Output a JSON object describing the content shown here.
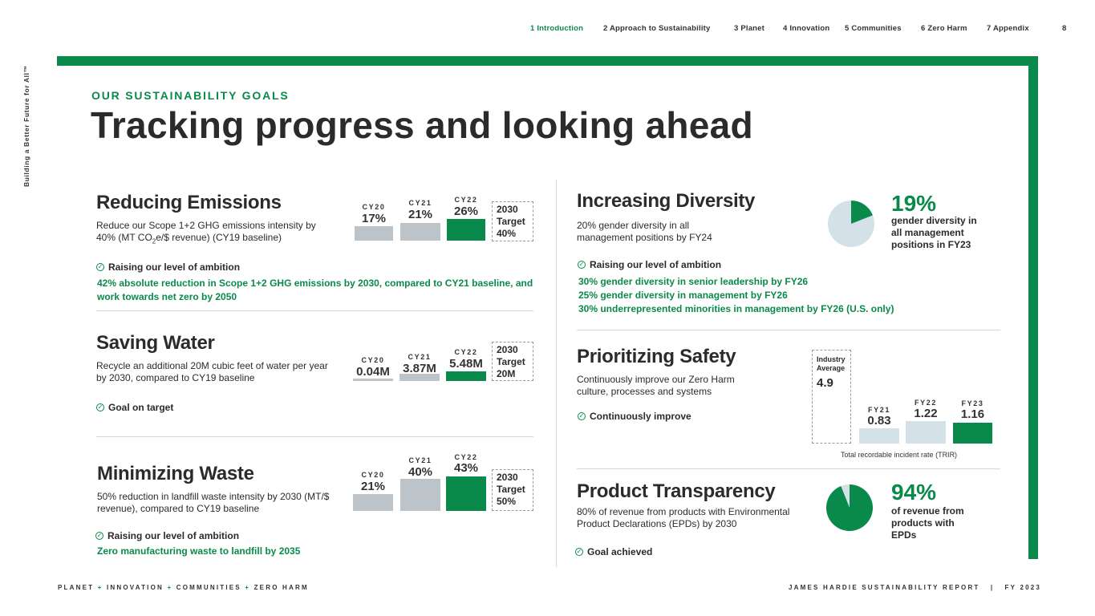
{
  "nav": {
    "items": [
      "1 Introduction",
      "2 Approach to Sustainability",
      "3 Planet",
      "4 Innovation",
      "5 Communities",
      "6 Zero Harm",
      "7 Appendix"
    ],
    "page_number": "8"
  },
  "side_text": "Building a Better Future for All™",
  "kicker": "OUR SUSTAINABILITY GOALS",
  "title": "Tracking progress and looking ahead",
  "emissions": {
    "title": "Reducing Emissions",
    "desc_before": "Reduce our Scope 1+2 GHG emissions intensity by 40% (MT CO",
    "desc_sub": "2",
    "desc_after": "e/$ revenue) (CY19 baseline)",
    "status": "Raising our level of ambition",
    "green_text": "42% absolute reduction in Scope 1+2 GHG emissions by 2030, compared to CY21 baseline, and work towards net zero by 2050",
    "chart": {
      "years": [
        "CY20",
        "CY21",
        "CY22"
      ],
      "labels": [
        "17%",
        "21%",
        "26%"
      ],
      "values": [
        17,
        21,
        26
      ]
    },
    "target": {
      "line1": "2030",
      "line2": "Target",
      "line3": "40%"
    }
  },
  "water": {
    "title": "Saving Water",
    "desc": "Recycle an additional 20M cubic feet of water per year by 2030, compared to CY19 baseline",
    "status": "Goal on target",
    "chart": {
      "years": [
        "CY20",
        "CY21",
        "CY22"
      ],
      "labels": [
        "0.04M",
        "3.87M",
        "5.48M"
      ],
      "values": [
        0.04,
        3.87,
        5.48
      ]
    },
    "target": {
      "line1": "2030",
      "line2": "Target",
      "line3": "20M"
    }
  },
  "waste": {
    "title": "Minimizing Waste",
    "desc": "50% reduction in landfill waste intensity by 2030 (MT/$ revenue), compared to CY19 baseline",
    "status": "Raising our level of ambition",
    "green_text": "Zero manufacturing waste to landfill by 2035",
    "chart": {
      "years": [
        "CY20",
        "CY21",
        "CY22"
      ],
      "labels": [
        "21%",
        "40%",
        "43%"
      ],
      "values": [
        21,
        40,
        43
      ]
    },
    "target": {
      "line1": "2030",
      "line2": "Target",
      "line3": "50%"
    }
  },
  "diversity": {
    "title": "Increasing Diversity",
    "desc": "20% gender diversity in all management positions by FY24",
    "big_number": "19%",
    "big_desc": "gender diversity in all management positions in FY23",
    "pie_value": 19,
    "status": "Raising our level of ambition",
    "green_lines": [
      "30% gender diversity in senior leadership by FY26",
      "25% gender diversity in management by FY26",
      "30% underrepresented minorities in management by FY26 (U.S. only)"
    ]
  },
  "safety": {
    "title": "Prioritizing Safety",
    "desc": "Continuously improve our Zero Harm culture, processes and systems",
    "status": "Continuously improve",
    "industry": {
      "line1": "Industry",
      "line2": "Average",
      "value": "4.9"
    },
    "chart": {
      "years": [
        "FY21",
        "FY22",
        "FY23"
      ],
      "labels": [
        "0.83",
        "1.22",
        "1.16"
      ],
      "values": [
        0.83,
        1.22,
        1.16
      ]
    },
    "caption": "Total recordable incident rate (TRIR)"
  },
  "transparency": {
    "title": "Product Transparency",
    "desc": "80% of revenue from products with Environmental Product Declarations (EPDs) by 2030",
    "big_number": "94%",
    "big_desc": "of revenue from products with EPDs",
    "pie_value": 94,
    "status": "Goal achieved"
  },
  "footer": {
    "left": [
      "PLANET",
      "INNOVATION",
      "COMMUNITIES",
      "ZERO HARM"
    ],
    "plus": "+",
    "right": "JAMES HARDIE SUSTAINABILITY REPORT",
    "sep": "|",
    "year": "FY 2023"
  },
  "colors": {
    "green": "#0a8a4a",
    "gray_bar": "#bcc4c9",
    "light_bar": "#d5e1e8"
  }
}
